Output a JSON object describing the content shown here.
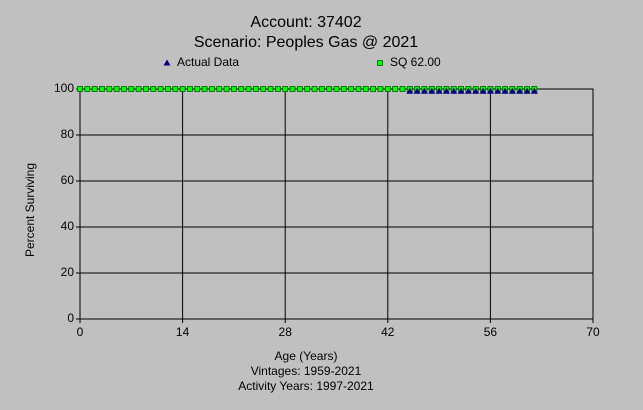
{
  "chart_data": {
    "type": "scatter",
    "title": "Account: 37402",
    "subtitle": "Scenario: Peoples Gas @ 2021",
    "xlabel": "Age (Years)",
    "ylabel": "Percent Surviving",
    "notes": [
      "Vintages: 1959-2021",
      "Activity Years: 1997-2021"
    ],
    "xlim": [
      0,
      70
    ],
    "xticks": [
      0,
      14,
      28,
      42,
      56,
      70
    ],
    "ylim": [
      0,
      100
    ],
    "yticks": [
      0,
      20,
      40,
      60,
      80,
      100
    ],
    "grid": true,
    "series": [
      {
        "name": "Actual Data",
        "color": "#000080",
        "marker": "triangle",
        "x": [
          45,
          46,
          47,
          48,
          49,
          50,
          51,
          52,
          53,
          54,
          55,
          56,
          57,
          58,
          59,
          60,
          61,
          62
        ],
        "values": [
          99,
          99,
          99,
          99,
          99,
          99,
          99,
          99,
          99,
          99,
          99,
          99,
          99,
          99,
          99,
          99,
          99,
          99
        ]
      },
      {
        "name": "SQ 62.00",
        "color": "#00ff00",
        "marker": "square",
        "x": [
          0,
          1,
          2,
          3,
          4,
          5,
          6,
          7,
          8,
          9,
          10,
          11,
          12,
          13,
          14,
          15,
          16,
          17,
          18,
          19,
          20,
          21,
          22,
          23,
          24,
          25,
          26,
          27,
          28,
          29,
          30,
          31,
          32,
          33,
          34,
          35,
          36,
          37,
          38,
          39,
          40,
          41,
          42,
          43,
          44,
          45,
          46,
          47,
          48,
          49,
          50,
          51,
          52,
          53,
          54,
          55,
          56,
          57,
          58,
          59,
          60,
          61,
          62
        ],
        "values": [
          100,
          100,
          100,
          100,
          100,
          100,
          100,
          100,
          100,
          100,
          100,
          100,
          100,
          100,
          100,
          100,
          100,
          100,
          100,
          100,
          100,
          100,
          100,
          100,
          100,
          100,
          100,
          100,
          100,
          100,
          100,
          100,
          100,
          100,
          100,
          100,
          100,
          100,
          100,
          100,
          100,
          100,
          100,
          100,
          100,
          100,
          100,
          100,
          100,
          100,
          100,
          100,
          100,
          100,
          100,
          100,
          100,
          100,
          100,
          100,
          100,
          100,
          100
        ]
      }
    ]
  }
}
